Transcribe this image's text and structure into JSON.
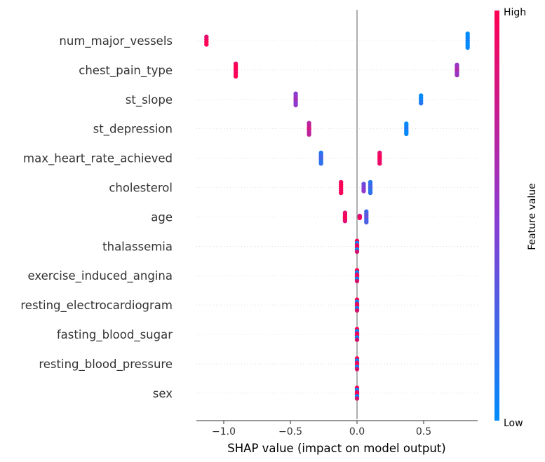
{
  "chart_data": {
    "type": "scatter",
    "subtype": "shap-beeswarm-summary",
    "xlabel": "SHAP value (impact on model output)",
    "ylabel": "",
    "xlim": [
      -1.2,
      0.93
    ],
    "x_ticks": [
      -1.0,
      -0.5,
      0.0,
      0.5
    ],
    "x_tick_labels": [
      "−1.0",
      "−0.5",
      "0.0",
      "0.5"
    ],
    "colorbar": {
      "title": "Feature value",
      "high_label": "High",
      "low_label": "Low",
      "high_color": "#ff0052",
      "low_color": "#008bfb"
    },
    "grid": false,
    "features": [
      {
        "name": "num_major_vessels",
        "points": [
          {
            "x": -1.13,
            "v": 0.95,
            "spread": 0.3
          },
          {
            "x": 0.83,
            "v": 0.0,
            "spread": 0.55
          }
        ]
      },
      {
        "name": "chest_pain_type",
        "points": [
          {
            "x": -0.91,
            "v": 1.0,
            "spread": 0.5
          },
          {
            "x": 0.75,
            "v": 0.6,
            "spread": 0.4
          }
        ]
      },
      {
        "name": "st_slope",
        "points": [
          {
            "x": -0.46,
            "v": 0.55,
            "spread": 0.45
          },
          {
            "x": 0.48,
            "v": 0.05,
            "spread": 0.3
          }
        ]
      },
      {
        "name": "st_depression",
        "points": [
          {
            "x": -0.36,
            "v": 0.75,
            "spread": 0.45
          },
          {
            "x": 0.37,
            "v": 0.05,
            "spread": 0.4
          }
        ]
      },
      {
        "name": "max_heart_rate_achieved",
        "points": [
          {
            "x": -0.27,
            "v": 0.2,
            "spread": 0.42
          },
          {
            "x": 0.17,
            "v": 0.95,
            "spread": 0.42
          }
        ]
      },
      {
        "name": "cholesterol",
        "points": [
          {
            "x": -0.12,
            "v": 1.0,
            "spread": 0.42
          },
          {
            "x": 0.05,
            "v": 0.45,
            "spread": 0.28
          },
          {
            "x": 0.1,
            "v": 0.2,
            "spread": 0.42
          }
        ]
      },
      {
        "name": "age",
        "points": [
          {
            "x": -0.09,
            "v": 0.95,
            "spread": 0.32
          },
          {
            "x": 0.02,
            "v": 0.85,
            "spread": 0.08
          },
          {
            "x": 0.07,
            "v": 0.3,
            "spread": 0.42
          }
        ]
      },
      {
        "name": "thalassemia",
        "points": [
          {
            "x": 0.0,
            "v": "mixed",
            "spread": 0.42
          }
        ]
      },
      {
        "name": "exercise_induced_angina",
        "points": [
          {
            "x": 0.0,
            "v": "mixed",
            "spread": 0.42
          }
        ]
      },
      {
        "name": "resting_electrocardiogram",
        "points": [
          {
            "x": 0.0,
            "v": "mixed",
            "spread": 0.42
          }
        ]
      },
      {
        "name": "fasting_blood_sugar",
        "points": [
          {
            "x": 0.0,
            "v": "mixed",
            "spread": 0.42
          }
        ]
      },
      {
        "name": "resting_blood_pressure",
        "points": [
          {
            "x": 0.0,
            "v": "mixed",
            "spread": 0.42
          }
        ]
      },
      {
        "name": "sex",
        "points": [
          {
            "x": 0.0,
            "v": "mixed",
            "spread": 0.42
          }
        ]
      }
    ]
  }
}
